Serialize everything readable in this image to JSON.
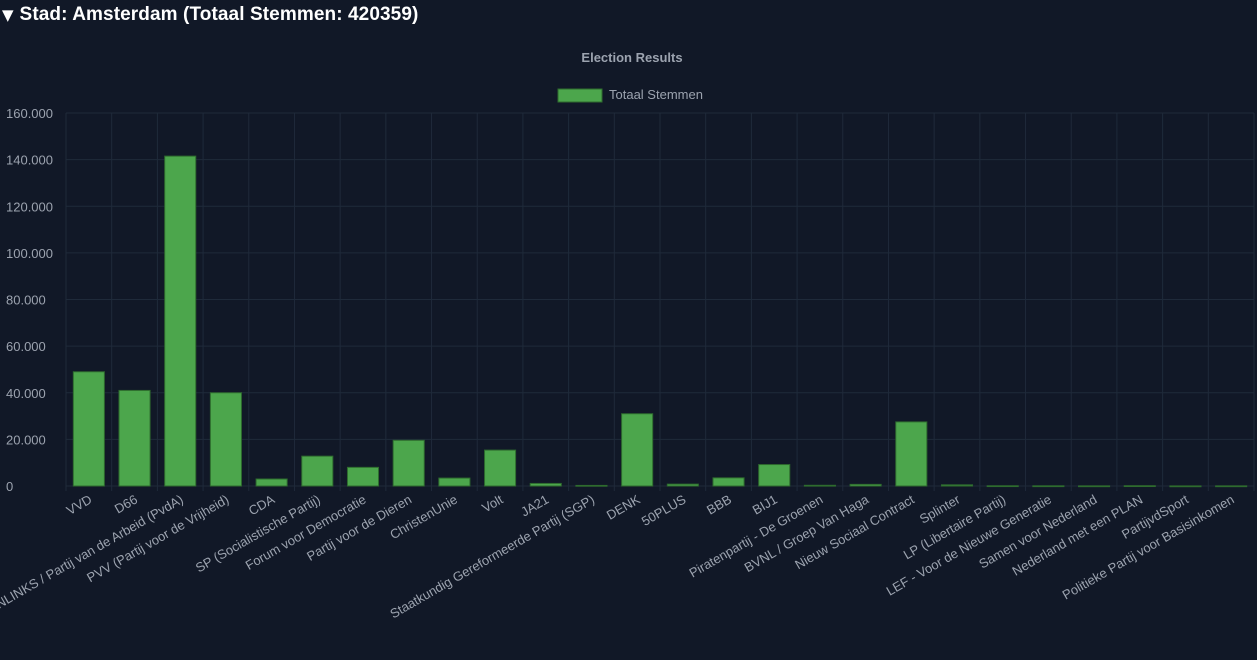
{
  "header": {
    "arrow": "▼",
    "title": "Stad: Amsterdam (Totaal Stemmen: 420359)"
  },
  "colors": {
    "background": "#111827",
    "bar_fill": "#4ca64c",
    "bar_stroke": "#2e6b2e",
    "grid": "#1f2a3a",
    "text": "#9ca3af"
  },
  "chart_data": {
    "type": "bar",
    "title": "Election Results",
    "legend_position": "top",
    "grid": true,
    "xlabel": "",
    "ylabel": "",
    "ylim": [
      0,
      160000
    ],
    "y_ticks": [
      0,
      20000,
      40000,
      60000,
      80000,
      100000,
      120000,
      140000,
      160000
    ],
    "y_tick_labels": [
      "0",
      "20.000",
      "40.000",
      "60.000",
      "80.000",
      "100.000",
      "120.000",
      "140.000",
      "160.000"
    ],
    "categories": [
      "VVD",
      "D66",
      "GROENLINKS / Partij van de Arbeid (PvdA)",
      "PVV (Partij voor de Vrijheid)",
      "CDA",
      "SP (Socialistische Partij)",
      "Forum voor Democratie",
      "Partij voor de Dieren",
      "ChristenUnie",
      "Volt",
      "JA21",
      "Staatkundig Gereformeerde Partij (SGP)",
      "DENK",
      "50PLUS",
      "BBB",
      "BIJ1",
      "Piratenpartij - De Groenen",
      "BVNL / Groep Van Haga",
      "Nieuw Sociaal Contract",
      "Splinter",
      "LP (Libertaire Partij)",
      "LEF - Voor de Nieuwe Generatie",
      "Samen voor Nederland",
      "Nederland met een PLAN",
      "PartijvdSport",
      "Politieke Partij voor Basisinkomen"
    ],
    "series": [
      {
        "name": "Totaal Stemmen",
        "values": [
          49000,
          41000,
          141500,
          40000,
          3000,
          12800,
          8000,
          19600,
          3400,
          15400,
          1100,
          250,
          31000,
          800,
          3500,
          9200,
          300,
          700,
          27500,
          500,
          100,
          80,
          60,
          120,
          40,
          60
        ]
      }
    ]
  }
}
